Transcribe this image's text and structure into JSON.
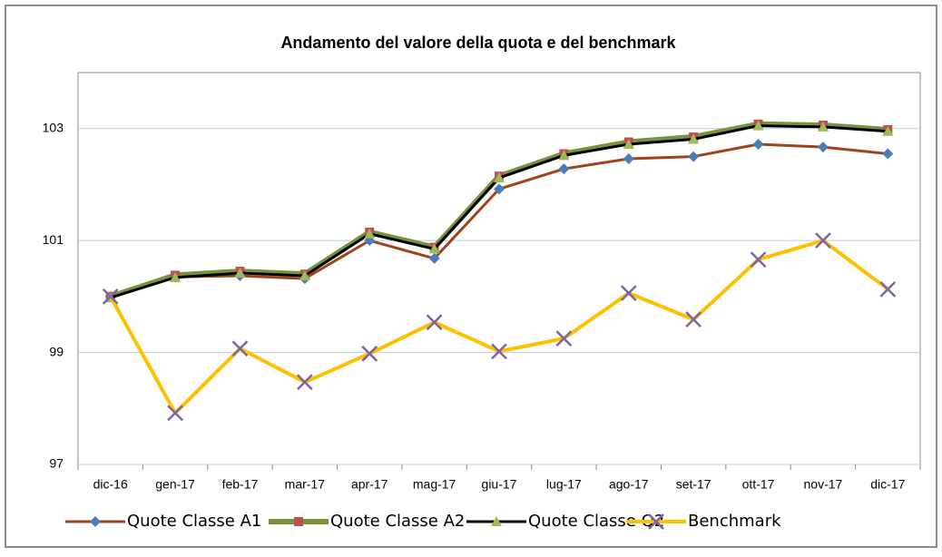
{
  "chart_data": {
    "type": "line",
    "title": "Andamento del valore della quota e del benchmark",
    "categories": [
      "dic-16",
      "gen-17",
      "feb-17",
      "mar-17",
      "apr-17",
      "mag-17",
      "giu-17",
      "lug-17",
      "ago-17",
      "set-17",
      "ott-17",
      "nov-17",
      "dic-17"
    ],
    "series": [
      {
        "name": "Quote Classe A1",
        "color": "#a0431b",
        "marker": "diamond",
        "marker_color": "#4a7ebb",
        "line_width": 3,
        "values": [
          100.0,
          100.35,
          100.37,
          100.32,
          101.0,
          100.68,
          101.92,
          102.28,
          102.46,
          102.5,
          102.72,
          102.67,
          102.55
        ]
      },
      {
        "name": "Quote Classe A2",
        "color": "#77933c",
        "marker": "square",
        "marker_color": "#c0504d",
        "line_width": 6,
        "values": [
          100.0,
          100.38,
          100.45,
          100.4,
          101.15,
          100.88,
          102.15,
          102.55,
          102.76,
          102.85,
          103.08,
          103.06,
          102.98
        ]
      },
      {
        "name": "Quote Classe Q2",
        "color": "#000000",
        "marker": "triangle",
        "marker_color": "#9bbb59",
        "line_width": 3,
        "values": [
          99.98,
          100.34,
          100.42,
          100.37,
          101.12,
          100.85,
          102.12,
          102.52,
          102.72,
          102.81,
          103.05,
          103.03,
          102.95
        ]
      },
      {
        "name": "Benchmark",
        "color": "#ffc000",
        "marker": "x",
        "marker_color": "#8064a2",
        "line_width": 4,
        "values": [
          100.0,
          97.92,
          99.07,
          98.47,
          98.98,
          99.54,
          99.02,
          99.25,
          100.06,
          99.59,
          100.66,
          101.0,
          100.13
        ]
      }
    ],
    "ylim": [
      97,
      104
    ],
    "yticks": [
      97,
      99,
      101,
      103
    ],
    "grid": true,
    "legend": "bottom"
  }
}
